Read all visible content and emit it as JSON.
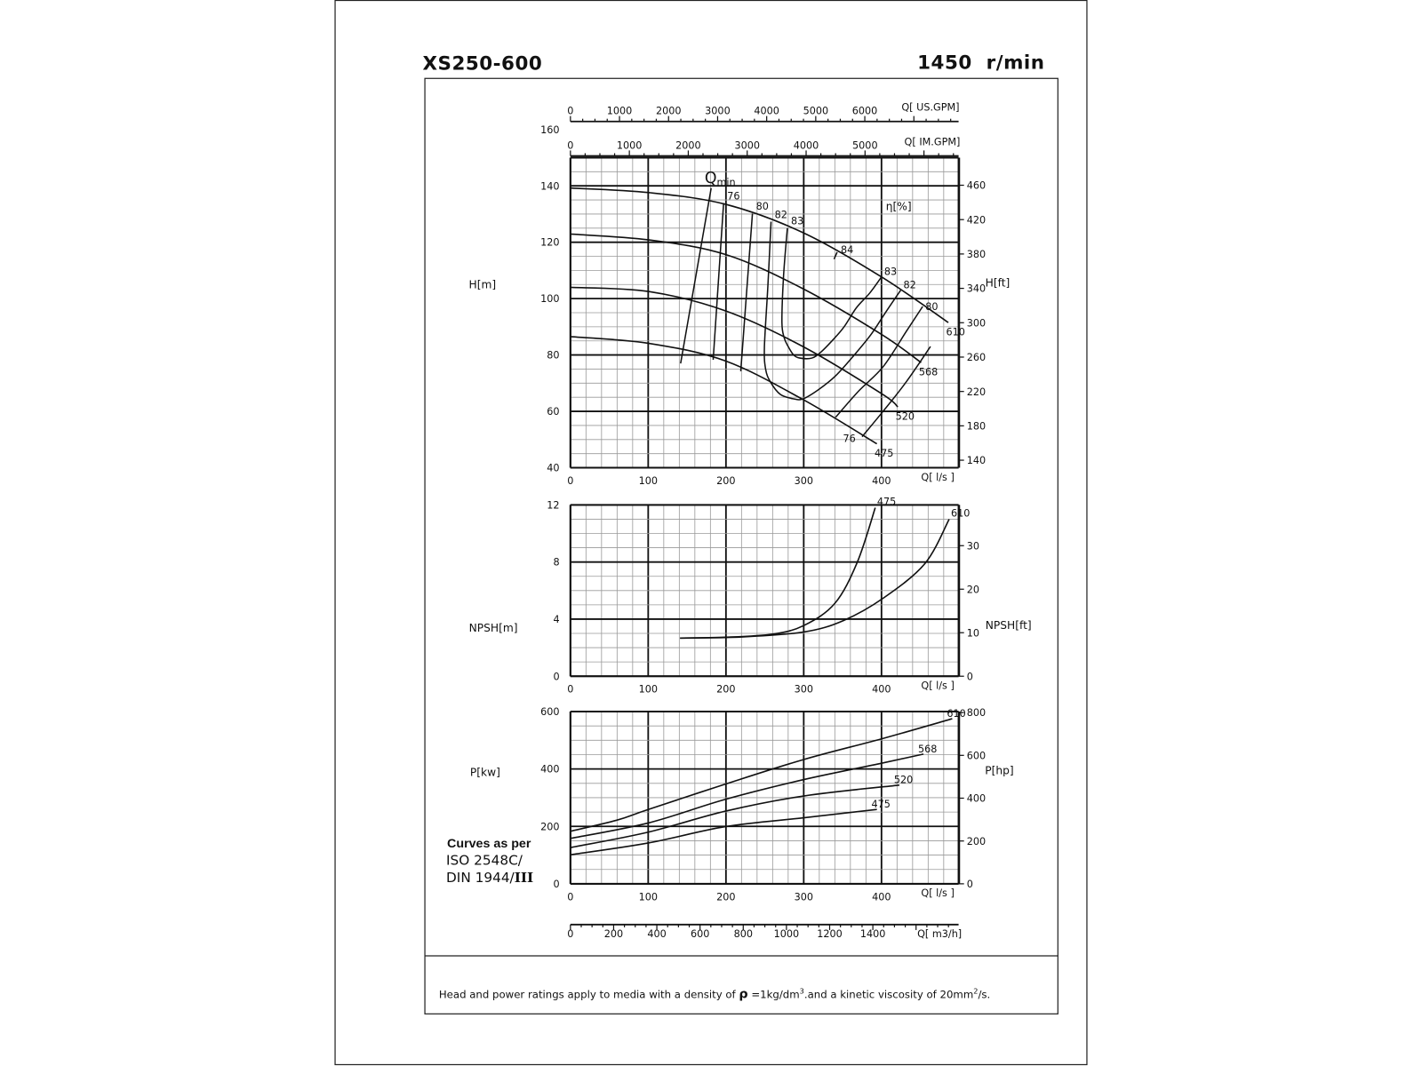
{
  "header": {
    "model": "XS250-600",
    "speed": "1450  r/min"
  },
  "notes": {
    "standard_heading": "Curves as per",
    "standard_line1": "ISO 2548C/",
    "standard_line2": "DIN 1944/",
    "standard_roman": "III",
    "footer_a": "Head and power ratings apply to media with a density of ",
    "footer_rho": "ρ",
    "footer_b": " =1kg/dm",
    "footer_sup1": "3",
    "footer_c": ".and a kinetic viscosity of 20mm",
    "footer_sup2": "2",
    "footer_d": "/s."
  },
  "secondary_axes": {
    "us_gpm": {
      "label": "Q[ US.GPM]",
      "ticks": [
        0,
        1000,
        2000,
        3000,
        4000,
        5000,
        6000
      ]
    },
    "im_gpm": {
      "label": "Q[ IM.GPM]",
      "ticks": [
        0,
        1000,
        2000,
        3000,
        4000,
        5000
      ]
    },
    "m3h": {
      "label": "Q[ m3/h]",
      "ticks": [
        0,
        200,
        400,
        600,
        800,
        1000,
        1200,
        1400
      ]
    }
  },
  "chart_data": [
    {
      "type": "line",
      "xlabel": "Q[ l/s ]",
      "ylabel": "H[m]",
      "ylabel_right": "H[ft]",
      "xlim": [
        0,
        500
      ],
      "ylim": [
        40,
        150
      ],
      "grid": true,
      "x_ticks": [
        0,
        100,
        200,
        300,
        400
      ],
      "y_ticks": [
        40,
        60,
        80,
        100,
        120,
        140,
        160
      ],
      "y_right_ticks": [
        140,
        180,
        220,
        260,
        300,
        340,
        380,
        420,
        460
      ],
      "series": [
        {
          "name": "610",
          "points": [
            [
              0,
              139.2
            ],
            [
              101,
              137.6
            ],
            [
              200,
              133.4
            ],
            [
              299,
              123.4
            ],
            [
              400,
              107.7
            ],
            [
              486,
              91.5
            ]
          ]
        },
        {
          "name": "568",
          "points": [
            [
              0,
              122.9
            ],
            [
              101,
              120.8
            ],
            [
              200,
              115.6
            ],
            [
              299,
              103.5
            ],
            [
              400,
              87.3
            ],
            [
              451,
              77.3
            ]
          ]
        },
        {
          "name": "520",
          "points": [
            [
              0,
              104
            ],
            [
              101,
              102.5
            ],
            [
              200,
              95.6
            ],
            [
              299,
              83
            ],
            [
              400,
              66.3
            ],
            [
              421,
              61.6
            ]
          ]
        },
        {
          "name": "475",
          "points": [
            [
              0,
              86.5
            ],
            [
              101,
              84.1
            ],
            [
              200,
              77.8
            ],
            [
              299,
              64.2
            ],
            [
              394,
              48.5
            ]
          ]
        }
      ],
      "efficiency_label": "η[%]",
      "qmin_label": {
        "main": "Q",
        "sub": "min"
      },
      "efficiency_curves": [
        {
          "name": "Qmin",
          "points": [
            [
              181,
              139.2
            ],
            [
              141.7,
              77
            ]
          ]
        },
        {
          "name": "76",
          "points": [
            [
              197,
              133.9
            ],
            [
              183.6,
              78.3
            ]
          ]
        },
        {
          "name": "80",
          "points": [
            [
              234,
              130.2
            ],
            [
              219,
              74.2
            ]
          ]
        },
        {
          "name": "82",
          "points": [
            [
              258,
              127.3
            ],
            [
              254,
              105
            ],
            [
              249.5,
              83
            ],
            [
              251,
              75
            ],
            [
              257,
              70.5
            ],
            [
              270,
              66
            ],
            [
              287.6,
              64.4
            ],
            [
              299,
              64.4
            ],
            [
              318,
              67.5
            ],
            [
              341,
              72.6
            ],
            [
              365,
              80
            ],
            [
              386.6,
              87.3
            ],
            [
              405,
              95
            ],
            [
              424.7,
              103
            ]
          ]
        },
        {
          "name": "83",
          "points": [
            [
              279,
              125
            ],
            [
              274,
              108
            ],
            [
              272,
              91.5
            ],
            [
              275,
              86
            ],
            [
              280,
              83
            ],
            [
              287,
              80
            ],
            [
              295,
              78.9
            ],
            [
              310.4,
              78.9
            ],
            [
              322,
              81
            ],
            [
              337,
              85.2
            ],
            [
              352,
              90
            ],
            [
              367.6,
              96.7
            ],
            [
              385,
              102
            ],
            [
              400,
              107.7
            ]
          ]
        },
        {
          "name": "84",
          "points": [
            [
              339,
              114
            ],
            [
              343,
              116.5
            ]
          ]
        },
        {
          "name": "80",
          "points": [
            [
              453,
              97.2
            ],
            [
              432,
              88.4
            ],
            [
              402,
              75.8
            ],
            [
              371,
              67.3
            ],
            [
              341,
              57.9
            ]
          ]
        },
        {
          "name": "76",
          "points": [
            [
              463,
              83
            ],
            [
              432,
              70.5
            ],
            [
              402,
              60
            ],
            [
              375,
              51
            ]
          ]
        }
      ]
    },
    {
      "type": "line",
      "xlabel": "Q[ l/s ]",
      "ylabel": "NPSH[m]",
      "ylabel_right": "NPSH[ft]",
      "xlim": [
        0,
        500
      ],
      "ylim": [
        0,
        12
      ],
      "grid": true,
      "x_ticks": [
        0,
        100,
        200,
        300,
        400
      ],
      "y_ticks": [
        0,
        4,
        8,
        12
      ],
      "y_right_ticks": [
        0,
        10,
        20,
        30
      ],
      "series": [
        {
          "name": "475",
          "points": [
            [
              141,
              2.67
            ],
            [
              199,
              2.73
            ],
            [
              260,
              2.95
            ],
            [
              300,
              3.55
            ],
            [
              340,
              5.1
            ],
            [
              369,
              8
            ],
            [
              392,
              11.8
            ]
          ]
        },
        {
          "name": "610",
          "points": [
            [
              141,
              2.67
            ],
            [
              220,
              2.75
            ],
            [
              300,
              3.1
            ],
            [
              351,
              3.9
            ],
            [
              403,
              5.5
            ],
            [
              456,
              7.9
            ],
            [
              487,
              11
            ]
          ]
        }
      ]
    },
    {
      "type": "line",
      "xlabel": "Q[ l/s ]",
      "ylabel": "P[kw]",
      "ylabel_right": "P[hp]",
      "xlim": [
        0,
        500
      ],
      "ylim": [
        0,
        600
      ],
      "grid": true,
      "x_ticks": [
        0,
        100,
        200,
        300,
        400
      ],
      "y_ticks": [
        0,
        200,
        400,
        600
      ],
      "y_right_ticks": [
        0,
        200,
        400,
        600,
        800
      ],
      "series": [
        {
          "name": "610",
          "points": [
            [
              0,
              183
            ],
            [
              59,
              221
            ],
            [
              100,
              259
            ],
            [
              199,
              347
            ],
            [
              300,
              433
            ],
            [
              400,
              505
            ],
            [
              491,
              575
            ]
          ]
        },
        {
          "name": "568",
          "points": [
            [
              0,
              158
            ],
            [
              100,
              212
            ],
            [
              199,
              294
            ],
            [
              300,
              363
            ],
            [
              400,
              420
            ],
            [
              454,
              452
            ]
          ]
        },
        {
          "name": "520",
          "points": [
            [
              0,
              126
            ],
            [
              100,
              180
            ],
            [
              199,
              253
            ],
            [
              300,
              306
            ],
            [
              423,
              344
            ]
          ]
        },
        {
          "name": "475",
          "points": [
            [
              0,
              101
            ],
            [
              100,
              142
            ],
            [
              199,
              199
            ],
            [
              300,
              230
            ],
            [
              394,
              259
            ]
          ]
        }
      ]
    }
  ]
}
